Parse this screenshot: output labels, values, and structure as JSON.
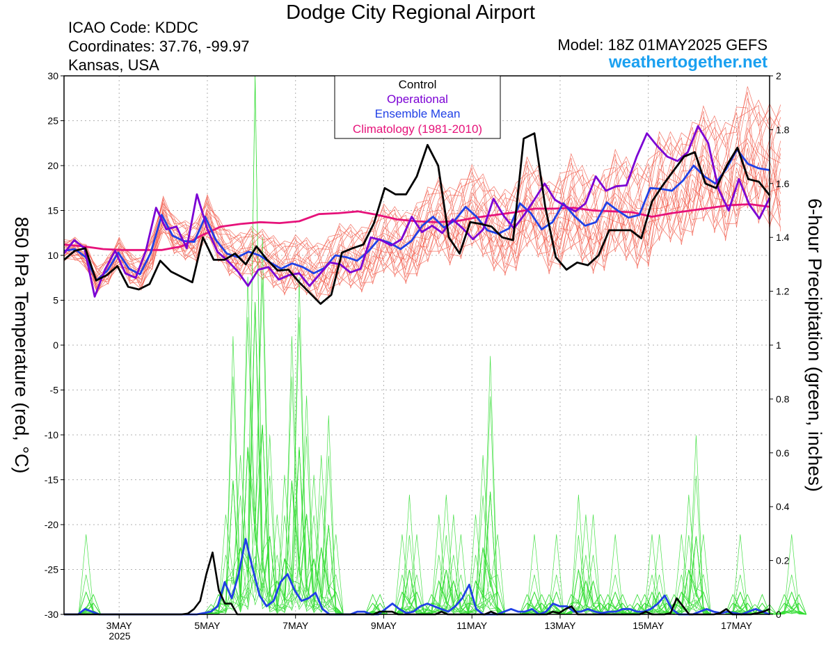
{
  "header": {
    "title": "Dodge City Regional Airport",
    "icao": "ICAO Code: KDDC",
    "coords": "Coordinates: 37.76, -99.97",
    "region": "Kansas, USA",
    "model": "Model: 18Z 01MAY2025 GEFS",
    "site": "weathertogether.net"
  },
  "colors": {
    "control": "#000000",
    "operational": "#7b00d4",
    "ensemble_mean": "#2040e6",
    "climatology": "#e6127a",
    "members_temp": "#f25a4a",
    "members_precip": "#33dd33",
    "site_link": "#1aa0f0"
  },
  "chart_data": {
    "type": "line",
    "left_axis": {
      "label": "850 hPa Temperature (red, °C)",
      "range": [
        -30,
        30
      ],
      "ticks": [
        30,
        25,
        20,
        15,
        10,
        5,
        0,
        -5,
        -10,
        -15,
        -20,
        -25,
        -30
      ]
    },
    "right_axis": {
      "label": "6-hour Precipitation (green, inches)",
      "range": [
        0,
        2
      ],
      "ticks": [
        2,
        1.8,
        1.6,
        1.4,
        1.2,
        1,
        0.8,
        0.6,
        0.4,
        0.2,
        0
      ]
    },
    "x_axis": {
      "start": "2025-05-01T18:00Z",
      "end": "2025-05-17T18:00Z",
      "step_hours": 6,
      "tick_labels": [
        "3MAY",
        "5MAY",
        "7MAY",
        "9MAY",
        "11MAY",
        "13MAY",
        "15MAY",
        "17MAY"
      ],
      "tick_dates": [
        "2025-05-03",
        "2025-05-05",
        "2025-05-07",
        "2025-05-09",
        "2025-05-11",
        "2025-05-13",
        "2025-05-15",
        "2025-05-17"
      ],
      "year_label": "2025"
    },
    "grid": true,
    "legend": {
      "placement": "top-center",
      "entries": [
        "Control",
        "Operational",
        "Ensemble Mean",
        "Climatology (1981-2010)"
      ]
    },
    "series": [
      {
        "name": "Control",
        "axis": "left",
        "values": [
          9.5,
          10.5,
          10.8,
          7.2,
          7.8,
          8.8,
          6.5,
          6.2,
          6.8,
          9.4,
          8.2,
          7.6,
          7.0,
          12.0,
          9.5,
          9.5,
          10.2,
          9.0,
          11.0,
          9.5,
          8.3,
          8.4,
          7.0,
          5.8,
          4.6,
          5.6,
          10.3,
          10.8,
          11.2,
          13.6,
          17.5,
          16.8,
          16.8,
          18.8,
          22.3,
          20.0,
          12.0,
          10.2,
          13.7,
          13.5,
          13.2,
          12.0,
          11.7,
          23.0,
          23.6,
          15.5,
          9.8,
          8.4,
          9.2,
          8.9,
          10.0,
          12.8,
          12.8,
          12.8,
          11.9,
          16.0,
          17.8,
          19.4,
          21.0,
          21.5,
          18.0,
          17.5,
          20.0,
          22.0,
          18.5,
          18.2,
          16.7
        ]
      },
      {
        "name": "Operational",
        "axis": "left",
        "values": [
          10.2,
          11.7,
          10.8,
          5.4,
          8.4,
          10.5,
          8.0,
          7.5,
          10.5,
          15.3,
          12.9,
          13.2,
          10.8,
          16.8,
          13.0,
          10.4,
          9.4,
          8.2,
          6.6,
          8.4,
          8.7,
          7.3,
          7.8,
          8.0,
          6.6,
          7.9,
          9.2,
          9.0,
          8.1,
          8.5,
          12.0,
          11.7,
          11.1,
          11.8,
          14.3,
          12.6,
          13.3,
          12.5,
          14.0,
          13.0,
          11.8,
          12.9,
          16.3,
          14.4,
          13.0,
          14.5,
          16.2,
          18.0,
          16.2,
          15.5,
          14.9,
          15.8,
          18.8,
          17.2,
          17.7,
          17.8,
          21.0,
          23.6,
          22.2,
          21.0,
          20.5,
          21.5,
          24.4,
          22.5,
          17.4,
          15.0,
          18.5,
          15.7,
          14.1,
          16.4
        ]
      },
      {
        "name": "Ensemble Mean",
        "axis": "left",
        "values": [
          10.5,
          10.7,
          9.8,
          7.2,
          8.3,
          10.3,
          8.5,
          7.9,
          10.3,
          14.5,
          12.2,
          11.6,
          11.5,
          14.3,
          11.7,
          10.2,
          9.8,
          10.4,
          10.0,
          9.2,
          8.5,
          9.1,
          8.7,
          8.0,
          8.6,
          10.0,
          9.8,
          9.4,
          10.4,
          11.8,
          11.4,
          10.7,
          11.6,
          13.3,
          14.3,
          13.1,
          13.9,
          15.4,
          14.3,
          12.8,
          12.4,
          13.0,
          15.8,
          14.7,
          12.9,
          13.7,
          15.8,
          14.4,
          13.3,
          13.7,
          15.9,
          15.0,
          14.2,
          14.5,
          17.5,
          17.4,
          17.2,
          18.3,
          20.0,
          18.8,
          18.0,
          19.6,
          21.8,
          20.2,
          19.7,
          19.5
        ]
      },
      {
        "name": "Climatology (1981-2010)",
        "axis": "left",
        "values": [
          11.2,
          11.0,
          10.7,
          10.6,
          10.6,
          10.6,
          11.0,
          12.2,
          13.2,
          13.5,
          13.7,
          13.6,
          13.8,
          14.6,
          14.7,
          14.9,
          14.5,
          14.0,
          13.8,
          13.7,
          13.8,
          14.2,
          14.5,
          14.8,
          15.2,
          15.2,
          15.3,
          15.0,
          14.9,
          14.8,
          14.3,
          14.7,
          15.0,
          15.3,
          15.6,
          15.7,
          15.4
        ]
      },
      {
        "name": "Control",
        "axis": "right",
        "values": [
          0,
          0,
          0,
          0,
          0,
          0,
          0,
          0,
          0,
          0,
          0,
          0,
          0,
          0,
          0,
          0,
          0,
          0,
          0,
          0,
          0.003,
          0.02,
          0.05,
          0.15,
          0.23,
          0.09,
          0.04,
          0.04,
          0,
          0,
          0,
          0,
          0,
          0,
          0,
          0,
          0,
          0,
          0,
          0,
          0,
          0,
          0,
          0,
          0,
          0,
          0,
          0,
          0,
          0,
          0,
          0.01,
          0.01,
          0.01,
          0,
          0,
          0,
          0,
          0,
          0,
          0,
          0.01,
          0,
          0,
          0,
          0,
          0,
          0,
          0,
          0.01,
          0,
          0,
          0,
          0,
          0,
          0,
          0,
          0,
          0,
          0.01,
          0.005,
          0.02,
          0.03,
          0,
          0,
          0,
          0,
          0,
          0,
          0,
          0,
          0,
          0,
          0,
          0.01,
          0,
          0,
          0,
          0.005,
          0.06,
          0.03,
          0,
          0,
          0,
          0,
          0,
          0.005,
          0.02,
          0,
          0,
          0,
          0,
          0.005,
          0.01,
          0.02
        ]
      },
      {
        "name": "Ensemble Mean",
        "axis": "right",
        "values": [
          0,
          0,
          0,
          0.02,
          0.01,
          0,
          0,
          0,
          0,
          0,
          0,
          0,
          0,
          0,
          0,
          0,
          0,
          0,
          0,
          0,
          0.005,
          0.01,
          0.03,
          0.12,
          0.06,
          0.15,
          0.28,
          0.17,
          0.07,
          0.03,
          0.05,
          0.12,
          0.15,
          0.09,
          0.05,
          0.06,
          0.08,
          0.02,
          0,
          0,
          0,
          0,
          0.01,
          0.01,
          0,
          0,
          0.02,
          0.04,
          0.02,
          0.005,
          0.01,
          0.03,
          0.04,
          0.03,
          0.02,
          0.01,
          0.03,
          0.06,
          0.11,
          0.02,
          0,
          0,
          0,
          0.01,
          0.02,
          0.01,
          0.01,
          0.02,
          0,
          0.01,
          0.04,
          0.03,
          0.03,
          0.01,
          0.01,
          0.02,
          0.01,
          0.005,
          0.01,
          0.01,
          0.02,
          0.02,
          0.01,
          0.01,
          0.02,
          0.04,
          0.07,
          0.02,
          0,
          0,
          0,
          0.01,
          0.02,
          0.01,
          0.005,
          0.01,
          0.005,
          0,
          0.01,
          0.02,
          0.01,
          0
        ]
      }
    ]
  }
}
